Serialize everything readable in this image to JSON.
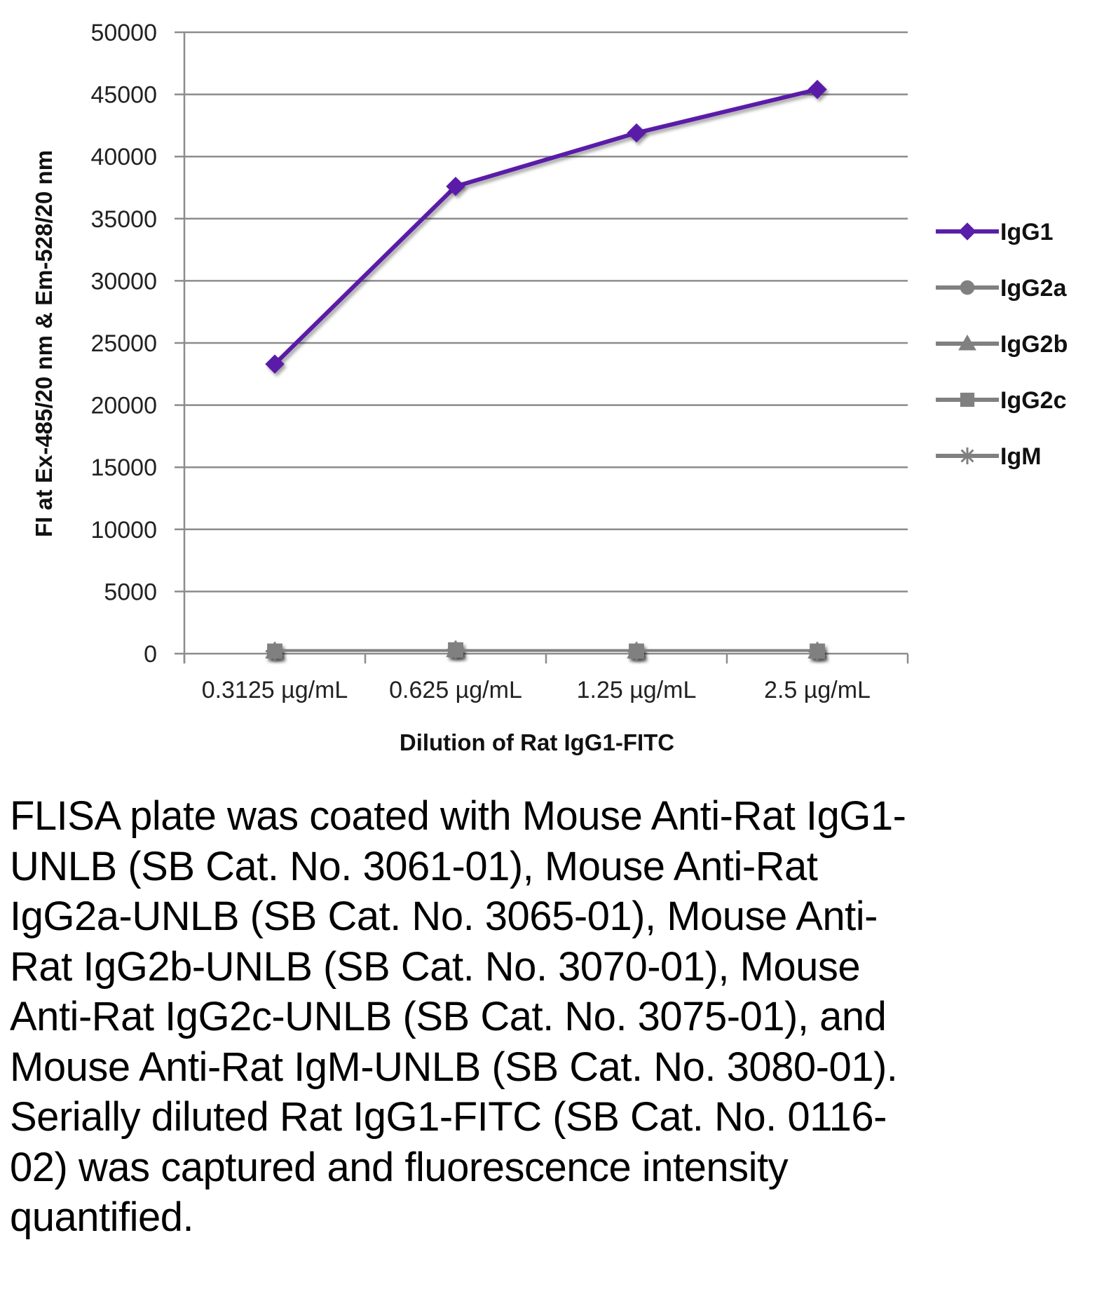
{
  "chart_data": {
    "type": "line",
    "title": "",
    "xlabel": "Dilution of Rat IgG1-FITC",
    "ylabel": "FI at Ex-485/20 nm & Em-528/20 nm",
    "categories": [
      "0.3125 µg/mL",
      "0.625 µg/mL",
      "1.25 µg/mL",
      "2.5 µg/mL"
    ],
    "ylim": [
      0,
      50000
    ],
    "yticks": [
      0,
      5000,
      10000,
      15000,
      20000,
      25000,
      30000,
      35000,
      40000,
      45000,
      50000
    ],
    "grid": true,
    "legend": "right",
    "series": [
      {
        "name": "IgG1",
        "values": [
          23300,
          37600,
          41900,
          45400
        ],
        "color": "#5a1fa8",
        "marker": "diamond"
      },
      {
        "name": "IgG2a",
        "values": [
          200,
          300,
          200,
          200
        ],
        "color": "#808080",
        "marker": "circle"
      },
      {
        "name": "IgG2b",
        "values": [
          200,
          300,
          200,
          200
        ],
        "color": "#808080",
        "marker": "triangle"
      },
      {
        "name": "IgG2c",
        "values": [
          200,
          300,
          200,
          200
        ],
        "color": "#808080",
        "marker": "square"
      },
      {
        "name": "IgM",
        "values": [
          200,
          300,
          200,
          200
        ],
        "color": "#808080",
        "marker": "asterisk"
      }
    ]
  },
  "caption": "FLISA plate was coated with Mouse Anti-Rat IgG1-UNLB (SB Cat. No. 3061-01), Mouse Anti-Rat IgG2a-UNLB (SB Cat. No. 3065-01), Mouse Anti-Rat IgG2b-UNLB (SB Cat. No. 3070-01), Mouse Anti-Rat IgG2c-UNLB (SB Cat. No. 3075-01), and Mouse Anti-Rat IgM-UNLB (SB Cat. No. 3080-01).  Serially diluted Rat IgG1-FITC (SB Cat. No. 0116-02) was captured and fluorescence intensity quantified."
}
